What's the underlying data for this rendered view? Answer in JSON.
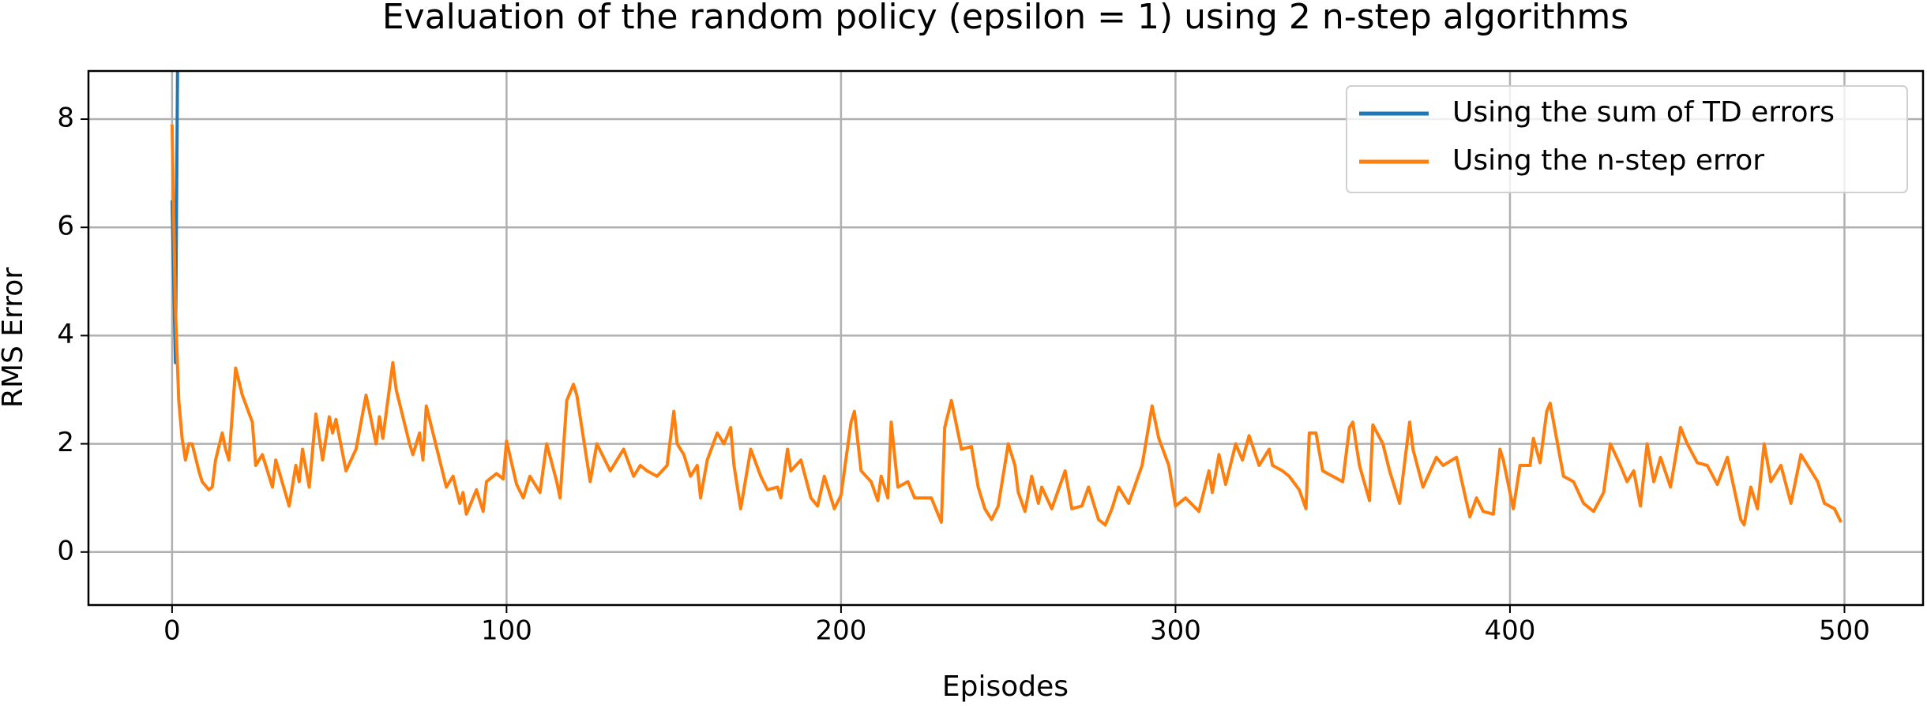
{
  "chart_data": {
    "type": "line",
    "title": "Evaluation of the random policy (epsilon = 1) using 2 n-step algorithms",
    "xlabel": "Episodes",
    "ylabel": "RMS Error",
    "xlim": [
      -25,
      523.5
    ],
    "ylim": [
      -0.98,
      8.89
    ],
    "xticks": [
      0,
      100,
      200,
      300,
      400,
      500
    ],
    "yticks": [
      0,
      2,
      4,
      6,
      8
    ],
    "grid": true,
    "legend": "upper right",
    "series": [
      {
        "name": "Using the sum of TD errors",
        "color": "#1f77b4",
        "x": [
          0,
          1,
          2
        ],
        "values": [
          6.5,
          3.5,
          12
        ]
      },
      {
        "name": "Using the n-step error",
        "color": "#ff7f0e",
        "x": [
          0,
          1,
          2,
          3,
          4,
          5,
          6,
          8,
          9,
          11,
          12,
          13,
          15,
          16,
          17,
          19,
          21,
          24,
          25,
          27,
          30,
          31,
          35,
          37,
          38,
          39,
          41,
          43,
          45,
          47,
          48,
          49,
          52,
          55,
          58,
          61,
          62,
          63,
          66,
          67,
          71,
          72,
          74,
          75,
          76,
          78,
          82,
          84,
          86,
          87,
          88,
          91,
          93,
          94,
          97,
          99,
          100,
          103,
          105,
          107,
          110,
          112,
          115,
          116,
          118,
          120,
          121,
          125,
          127,
          131,
          135,
          138,
          140,
          142,
          145,
          148,
          150,
          151,
          153,
          155,
          157,
          158,
          160,
          163,
          165,
          167,
          168,
          170,
          173,
          176,
          178,
          181,
          182,
          184,
          185,
          188,
          191,
          193,
          195,
          198,
          200,
          203,
          204,
          206,
          209,
          211,
          212,
          214,
          215,
          217,
          220,
          222,
          227,
          230,
          231,
          233,
          236,
          239,
          241,
          243,
          245,
          247,
          250,
          252,
          253,
          255,
          257,
          259,
          260,
          263,
          267,
          269,
          272,
          274,
          276,
          277,
          279,
          281,
          283,
          286,
          290,
          293,
          295,
          298,
          300,
          303,
          307,
          310,
          311,
          313,
          315,
          318,
          320,
          322,
          325,
          328,
          329,
          332,
          334,
          337,
          339,
          340,
          342,
          344,
          347,
          350,
          352,
          353,
          355,
          358,
          359,
          362,
          364,
          367,
          370,
          371,
          374,
          378,
          380,
          384,
          388,
          390,
          392,
          395,
          397,
          398,
          401,
          403,
          406,
          407,
          409,
          411,
          412,
          416,
          419,
          422,
          425,
          428,
          430,
          433,
          435,
          437,
          439,
          441,
          443,
          445,
          448,
          451,
          453,
          456,
          459,
          462,
          465,
          469,
          470,
          472,
          474,
          476,
          478,
          481,
          484,
          487,
          491,
          492,
          494,
          497,
          499
        ],
        "values": [
          7.9,
          4.5,
          2.8,
          2.1,
          1.7,
          2.0,
          2.0,
          1.5,
          1.3,
          1.15,
          1.2,
          1.7,
          2.2,
          1.9,
          1.7,
          3.4,
          2.9,
          2.4,
          1.6,
          1.8,
          1.2,
          1.7,
          0.85,
          1.6,
          1.3,
          1.9,
          1.2,
          2.55,
          1.7,
          2.5,
          2.2,
          2.45,
          1.5,
          1.9,
          2.9,
          2.0,
          2.5,
          2.1,
          3.5,
          3.0,
          2.0,
          1.8,
          2.2,
          1.7,
          2.7,
          2.2,
          1.2,
          1.4,
          0.9,
          1.1,
          0.7,
          1.15,
          0.75,
          1.3,
          1.45,
          1.35,
          2.05,
          1.25,
          1.0,
          1.4,
          1.1,
          2.0,
          1.3,
          1.0,
          2.8,
          3.1,
          2.9,
          1.3,
          2.0,
          1.5,
          1.9,
          1.4,
          1.6,
          1.5,
          1.4,
          1.6,
          2.6,
          2.0,
          1.8,
          1.4,
          1.6,
          1.0,
          1.7,
          2.2,
          2.0,
          2.3,
          1.6,
          0.8,
          1.9,
          1.4,
          1.15,
          1.2,
          1.0,
          1.9,
          1.5,
          1.7,
          1.0,
          0.85,
          1.4,
          0.8,
          1.05,
          2.4,
          2.6,
          1.5,
          1.3,
          0.95,
          1.4,
          1.0,
          2.4,
          1.2,
          1.3,
          1.0,
          1.0,
          0.55,
          2.3,
          2.8,
          1.9,
          1.95,
          1.2,
          0.8,
          0.6,
          0.85,
          2.0,
          1.6,
          1.1,
          0.75,
          1.4,
          0.9,
          1.2,
          0.8,
          1.5,
          0.8,
          0.85,
          1.2,
          0.8,
          0.6,
          0.5,
          0.8,
          1.2,
          0.9,
          1.6,
          2.7,
          2.1,
          1.6,
          0.85,
          1.0,
          0.75,
          1.5,
          1.1,
          1.8,
          1.25,
          2.0,
          1.7,
          2.15,
          1.6,
          1.9,
          1.6,
          1.5,
          1.4,
          1.15,
          0.8,
          2.2,
          2.2,
          1.5,
          1.4,
          1.3,
          2.3,
          2.4,
          1.6,
          0.95,
          2.35,
          2.0,
          1.5,
          0.9,
          2.4,
          1.9,
          1.2,
          1.75,
          1.6,
          1.75,
          0.65,
          1.0,
          0.75,
          0.7,
          1.9,
          1.7,
          0.8,
          1.6,
          1.6,
          2.1,
          1.65,
          2.6,
          2.75,
          1.4,
          1.3,
          0.9,
          0.75,
          1.1,
          2.0,
          1.6,
          1.3,
          1.5,
          0.85,
          2.0,
          1.3,
          1.75,
          1.2,
          2.3,
          2.0,
          1.65,
          1.6,
          1.25,
          1.75,
          0.6,
          0.5,
          1.2,
          0.8,
          2.0,
          1.3,
          1.6,
          0.9,
          1.8,
          1.4,
          1.3,
          0.9,
          0.8,
          0.55
        ]
      }
    ]
  }
}
